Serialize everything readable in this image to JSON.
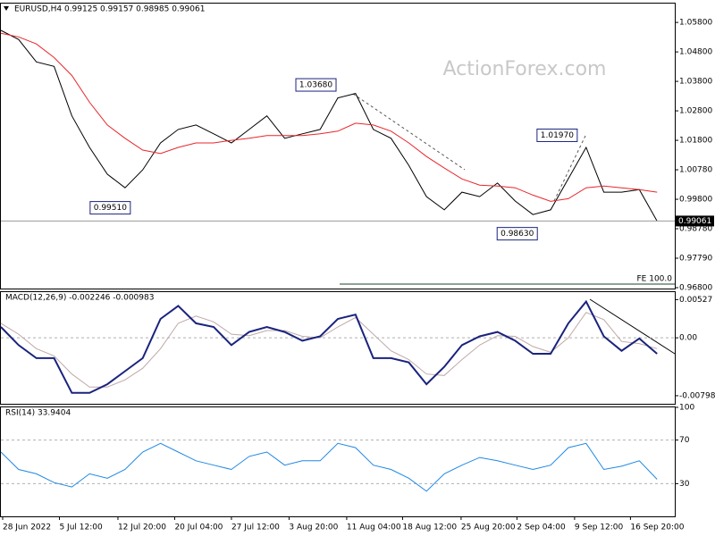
{
  "chart_data": [
    {
      "type": "line",
      "title": "EURUSD,H4  0.99125 0.99157 0.98985 0.99061",
      "watermark": "ActionForex.com",
      "x": [
        0,
        2,
        4,
        6,
        8,
        10,
        12,
        14,
        16,
        18,
        20,
        22,
        24,
        26,
        28,
        30,
        32,
        34,
        36,
        38,
        40,
        42,
        44,
        46,
        48,
        50,
        52,
        54,
        56,
        58,
        60,
        62,
        64,
        66,
        68,
        70,
        72,
        74
      ],
      "xlim": [
        0,
        76
      ],
      "ylim": [
        0.9677,
        1.0644
      ],
      "yticks": [
        {
          "value": 1.058,
          "label": "1.05800"
        },
        {
          "value": 1.048,
          "label": "1.04800"
        },
        {
          "value": 1.038,
          "label": "1.03800"
        },
        {
          "value": 1.028,
          "label": "1.02800"
        },
        {
          "value": 1.018,
          "label": "1.01800"
        },
        {
          "value": 1.008,
          "label": "1.00780"
        },
        {
          "value": 0.998,
          "label": "0.99800"
        },
        {
          "value": 0.988,
          "label": "0.98780"
        },
        {
          "value": 0.978,
          "label": "0.97790"
        },
        {
          "value": 0.968,
          "label": "0.96800"
        }
      ],
      "series": [
        {
          "color": "#000000",
          "values": [
            1.0553,
            1.0522,
            1.0446,
            1.0431,
            1.0263,
            1.0156,
            1.0065,
            1.0019,
            1.008,
            1.0171,
            1.0217,
            1.0232,
            1.0202,
            1.0171,
            1.0217,
            1.0263,
            1.0187,
            1.0202,
            1.0217,
            1.0324,
            1.0339,
            1.0217,
            1.0187,
            1.0095,
            0.9989,
            0.9944,
            1.0004,
            0.9989,
            1.0035,
            0.9974,
            0.9928,
            0.9944,
            1.005,
            1.0156,
            1.0004,
            1.0004,
            1.0013,
            0.9906
          ]
        },
        {
          "color": "#e8262b",
          "values": [
            1.0543,
            1.0531,
            1.0507,
            1.0461,
            1.04,
            1.0309,
            1.0232,
            1.0187,
            1.0147,
            1.0135,
            1.0156,
            1.0171,
            1.0171,
            1.018,
            1.0187,
            1.0196,
            1.0196,
            1.0196,
            1.0202,
            1.0211,
            1.0238,
            1.0232,
            1.0211,
            1.0171,
            1.0125,
            1.0086,
            1.0049,
            1.0028,
            1.0025,
            1.0019,
            0.9994,
            0.9973,
            0.9982,
            1.0019,
            1.0025,
            1.0019,
            1.0013,
            1.0004
          ]
        }
      ],
      "annotations": [
        {
          "x": 14.6,
          "value": 0.9951,
          "label": "0.99510"
        },
        {
          "x": 37.8,
          "value": 1.0368,
          "label": "1.03680"
        },
        {
          "x": 60.5,
          "value": 0.9863,
          "label": "0.98630"
        },
        {
          "x": 65.0,
          "value": 1.0197,
          "label": "1.01970"
        }
      ],
      "last_price": {
        "value": 0.99061,
        "label": "0.99061"
      },
      "fe_label": "FE 100.0"
    },
    {
      "type": "line",
      "title": "MACD(12,26,9) -0.002246 -0.000983",
      "x": [
        0,
        2,
        4,
        6,
        8,
        10,
        12,
        14,
        16,
        18,
        20,
        22,
        24,
        26,
        28,
        30,
        32,
        34,
        36,
        38,
        40,
        42,
        44,
        46,
        48,
        50,
        52,
        54,
        56,
        58,
        60,
        62,
        64,
        66,
        68,
        70,
        72,
        74
      ],
      "xlim": [
        0,
        76
      ],
      "ylim": [
        -0.0091,
        0.0063
      ],
      "yticks": [
        0.00527,
        {
          "value": 0,
          "label": "0.00"
        },
        -0.007984
      ],
      "levels": [
        0
      ],
      "series": [
        {
          "color": "#c0a8a8",
          "values": [
            0.002,
            0.0005,
            -0.0015,
            -0.0025,
            -0.005,
            -0.0068,
            -0.0068,
            -0.0058,
            -0.0042,
            -0.0015,
            0.002,
            0.003,
            0.0022,
            0.0005,
            0.0003,
            0.001,
            0.001,
            0.0002,
            0,
            0.0015,
            0.0028,
            0.0005,
            -0.0018,
            -0.003,
            -0.005,
            -0.0052,
            -0.003,
            -0.001,
            0.0003,
            0.0002,
            -0.0012,
            -0.002,
            0,
            0.0035,
            0.0025,
            -0.0005,
            -0.0008,
            -0.0015
          ]
        },
        {
          "color": "#1a237e",
          "width": 2,
          "values": [
            0.0015,
            -0.001,
            -0.0028,
            -0.0028,
            -0.0076,
            -0.0076,
            -0.0064,
            -0.0046,
            -0.0028,
            0.0026,
            0.0044,
            0.002,
            0.0015,
            -0.001,
            0.0008,
            0.0015,
            0.0008,
            -0.0004,
            0.0002,
            0.0026,
            0.0032,
            -0.0028,
            -0.0028,
            -0.0034,
            -0.0064,
            -0.004,
            -0.001,
            0.0002,
            0.0008,
            -0.0004,
            -0.0022,
            -0.0022,
            0.002,
            0.005,
            0.0002,
            -0.0018,
            -0.0001,
            -0.0022
          ]
        }
      ]
    },
    {
      "type": "line",
      "title": "RSI(14) 33.9404",
      "x": [
        0,
        2,
        4,
        6,
        8,
        10,
        12,
        14,
        16,
        18,
        20,
        22,
        24,
        26,
        28,
        30,
        32,
        34,
        36,
        38,
        40,
        42,
        44,
        46,
        48,
        50,
        52,
        54,
        56,
        58,
        60,
        62,
        64,
        66,
        68,
        70,
        72,
        74
      ],
      "xlim": [
        0,
        76
      ],
      "ylim": [
        0,
        100
      ],
      "yticks": [
        100,
        70,
        30
      ],
      "levels": [
        70,
        30
      ],
      "series": [
        {
          "color": "#1e88e5",
          "values": [
            59,
            43,
            39,
            31,
            27,
            39,
            35,
            43,
            59,
            67,
            59,
            51,
            47,
            43,
            55,
            59,
            47,
            51,
            51,
            67,
            63,
            47,
            43,
            35,
            23,
            39,
            47,
            54,
            51,
            47,
            43,
            47,
            63,
            67,
            43,
            46,
            51,
            34
          ]
        }
      ],
      "xticks": [
        {
          "value": 0.2,
          "label": "28 Jun 2022"
        },
        {
          "value": 6.6,
          "label": "5 Jul 12:00"
        },
        {
          "value": 13.2,
          "label": "12 Jul 20:00"
        },
        {
          "value": 19.6,
          "label": "20 Jul 04:00"
        },
        {
          "value": 26.0,
          "label": "27 Jul 12:00"
        },
        {
          "value": 32.5,
          "label": "3 Aug 20:00"
        },
        {
          "value": 39.0,
          "label": "11 Aug 04:00"
        },
        {
          "value": 45.3,
          "label": "18 Aug 12:00"
        },
        {
          "value": 51.9,
          "label": "25 Aug 20:00"
        },
        {
          "value": 58.2,
          "label": "2 Sep 04:00"
        },
        {
          "value": 64.7,
          "label": "9 Sep 12:00"
        },
        {
          "value": 71.0,
          "label": "16 Sep 20:00"
        }
      ]
    }
  ]
}
